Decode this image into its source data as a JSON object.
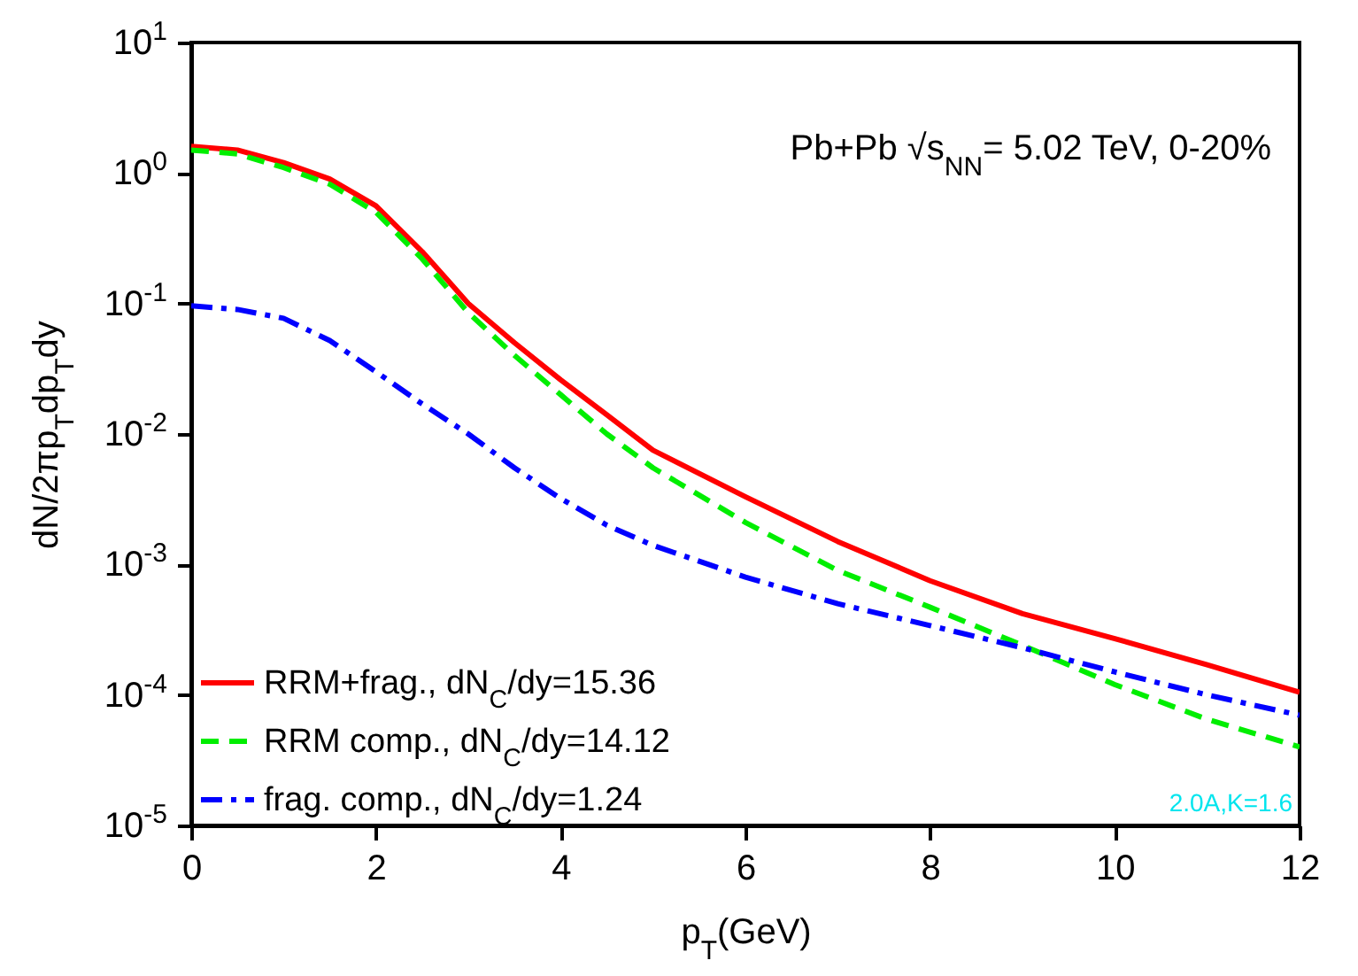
{
  "chart_data": {
    "type": "line",
    "xlabel": "p$_{T}$(GeV)",
    "ylabel": "dN/2πp$_{T}$dp$_{T}$dy",
    "annotations": [
      "Pb+Pb √s$_{NN}$= 5.02 TeV, 0-20%",
      "2.0A,K=1.6"
    ],
    "x": [
      0,
      0.5,
      1,
      1.5,
      2,
      2.5,
      3,
      3.5,
      4,
      4.5,
      5,
      6,
      7,
      8,
      9,
      10,
      11,
      12
    ],
    "series": [
      {
        "name": "RRM+frag., dN$_{C}$/dy=15.36",
        "color": "#ff0000",
        "line_style": "solid",
        "values": [
          1.6,
          1.5,
          1.2,
          0.9,
          0.56,
          0.25,
          0.1,
          0.05,
          0.026,
          0.014,
          0.0075,
          0.0033,
          0.0015,
          0.00075,
          0.00042,
          0.00027,
          0.00017,
          0.000105
        ]
      },
      {
        "name": "RRM comp., dN$_{C}$/dy=14.12",
        "color": "#00ee00",
        "line_style": "dashed",
        "values": [
          1.5,
          1.4,
          1.1,
          0.82,
          0.5,
          0.22,
          0.085,
          0.04,
          0.02,
          0.01,
          0.0055,
          0.0021,
          0.0009,
          0.00047,
          0.00024,
          0.00012,
          6.5e-05,
          4e-05
        ]
      },
      {
        "name": "frag. comp., dN$_{C}$/dy=1.24",
        "color": "#0000ff",
        "line_style": "dashdot",
        "values": [
          0.096,
          0.09,
          0.077,
          0.052,
          0.03,
          0.017,
          0.01,
          0.0055,
          0.0032,
          0.002,
          0.0014,
          0.0008,
          0.0005,
          0.00034,
          0.00023,
          0.00015,
          0.0001,
          7e-05
        ]
      }
    ],
    "xlim": [
      0,
      12
    ],
    "xticks": [
      0,
      2,
      4,
      6,
      8,
      10,
      12
    ],
    "ylim": [
      1e-05,
      10
    ],
    "log": "y",
    "yticks": [
      {
        "value": 1e-05,
        "label": "10$^{-5}$"
      },
      {
        "value": 0.0001,
        "label": "10$^{-4}$"
      },
      {
        "value": 0.001,
        "label": "10$^{-3}$"
      },
      {
        "value": 0.01,
        "label": "10$^{-2}$"
      },
      {
        "value": 0.1,
        "label": "10$^{-1}$"
      },
      {
        "value": 1,
        "label": "10$^{0}$"
      },
      {
        "value": 10,
        "label": "10$^{1}$"
      }
    ],
    "grid": false,
    "legend": "bottom left",
    "marker": "none"
  }
}
